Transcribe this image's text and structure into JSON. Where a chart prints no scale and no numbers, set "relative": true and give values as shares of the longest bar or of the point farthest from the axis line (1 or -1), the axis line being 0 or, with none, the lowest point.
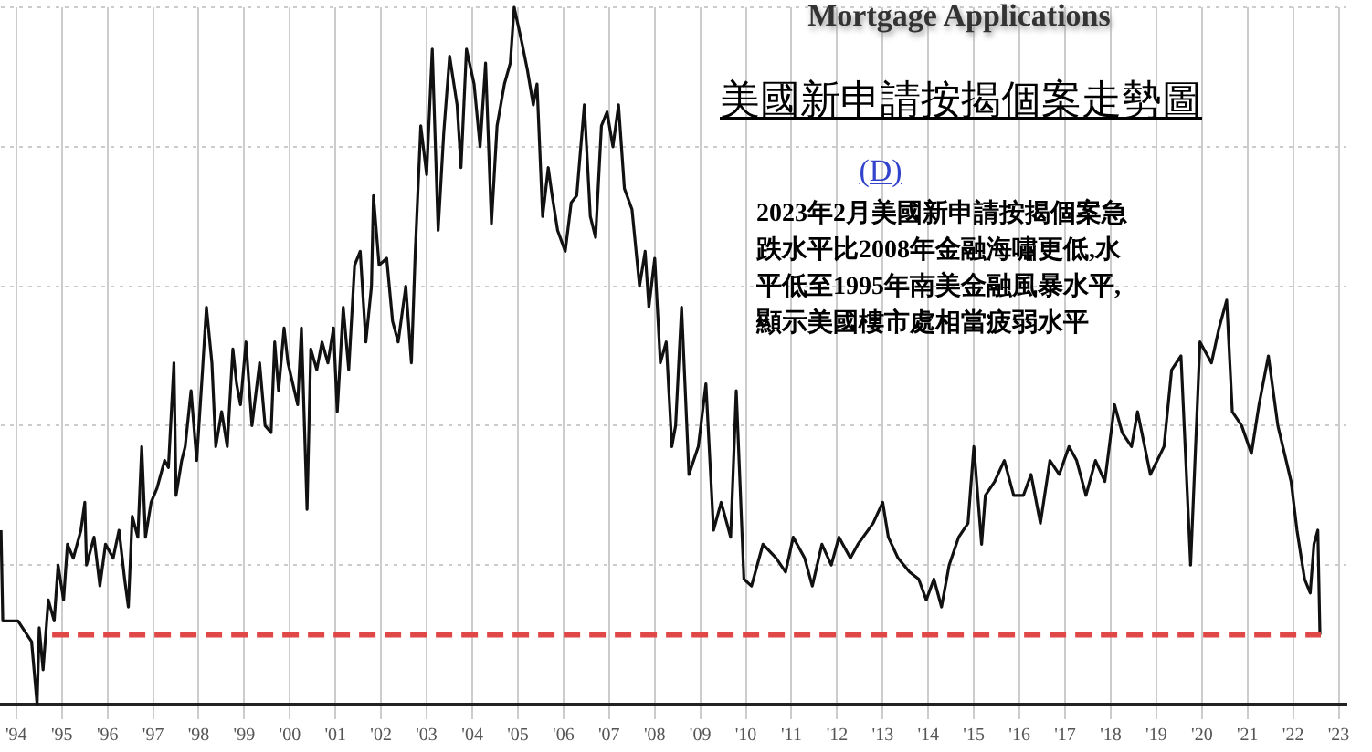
{
  "chart_data": {
    "type": "line",
    "title": "Mortgage Applications",
    "subtitle": "美國新申請按揭個案走勢圖",
    "annotations": [
      "(D)",
      "2023年2月美國新申請按揭個案急跌水平比2008年金融海嘯更低,水平低至1995年南美金融風暴水平,顯示美國樓市處相當疲弱水平"
    ],
    "relative": true,
    "legend": false,
    "grid": true,
    "marker": "none",
    "line_style": "solid",
    "xlim": [
      "1994-03-01",
      "2023-09-01"
    ],
    "xticks": [
      {
        "value": "1994-07-01",
        "label": "'94"
      },
      {
        "value": "1995-07-01",
        "label": "'95"
      },
      {
        "value": "1996-07-01",
        "label": "'96"
      },
      {
        "value": "1997-07-01",
        "label": "'97"
      },
      {
        "value": "1998-07-01",
        "label": "'98"
      },
      {
        "value": "1999-07-01",
        "label": "'99"
      },
      {
        "value": "2000-07-01",
        "label": "'00"
      },
      {
        "value": "2001-07-01",
        "label": "'01"
      },
      {
        "value": "2002-07-01",
        "label": "'02"
      },
      {
        "value": "2003-07-01",
        "label": "'03"
      },
      {
        "value": "2004-07-01",
        "label": "'04"
      },
      {
        "value": "2005-07-01",
        "label": "'05"
      },
      {
        "value": "2006-07-01",
        "label": "'06"
      },
      {
        "value": "2007-07-01",
        "label": "'07"
      },
      {
        "value": "2008-07-01",
        "label": "'08"
      },
      {
        "value": "2009-07-01",
        "label": "'09"
      },
      {
        "value": "2010-07-01",
        "label": "'10"
      },
      {
        "value": "2011-07-01",
        "label": "'11"
      },
      {
        "value": "2012-07-01",
        "label": "'12"
      },
      {
        "value": "2013-07-01",
        "label": "'13"
      },
      {
        "value": "2014-07-01",
        "label": "'14"
      },
      {
        "value": "2015-07-01",
        "label": "'15"
      },
      {
        "value": "2016-07-01",
        "label": "'16"
      },
      {
        "value": "2017-07-01",
        "label": "'17"
      },
      {
        "value": "2018-07-01",
        "label": "'18"
      },
      {
        "value": "2019-07-01",
        "label": "'19"
      },
      {
        "value": "2020-07-01",
        "label": "'20"
      },
      {
        "value": "2021-07-01",
        "label": "'21"
      },
      {
        "value": "2022-07-01",
        "label": "'22"
      },
      {
        "value": "2023-07-01",
        "label": "'23"
      }
    ],
    "ref_lines": [
      {
        "axis": "y",
        "value": 0.1,
        "color": "#e04848",
        "line_style": "dashed"
      }
    ],
    "series": [
      {
        "color": "#111111",
        "x": [
          "1994-03-01",
          "1994-03-15",
          "1994-07-15",
          "1994-11-01",
          "1994-12-15",
          "1995-01-01",
          "1995-02-01",
          "1995-03-15",
          "1995-05-01",
          "1995-06-01",
          "1995-07-15",
          "1995-08-15",
          "1995-10-01",
          "1995-12-01",
          "1996-01-01",
          "1996-01-15",
          "1996-03-15",
          "1996-05-01",
          "1996-06-15",
          "1996-08-15",
          "1996-10-01",
          "1996-11-15",
          "1996-12-15",
          "1997-01-15",
          "1997-03-01",
          "1997-04-01",
          "1997-05-01",
          "1997-06-15",
          "1997-08-01",
          "1997-10-01",
          "1997-11-01",
          "1997-12-15",
          "1998-01-01",
          "1998-02-15",
          "1998-03-15",
          "1998-05-01",
          "1998-06-15",
          "1998-08-01",
          "1998-09-01",
          "1998-10-15",
          "1998-11-15",
          "1999-01-01",
          "1999-02-15",
          "1999-04-01",
          "1999-05-01",
          "1999-06-01",
          "1999-07-15",
          "1999-09-01",
          "1999-11-01",
          "1999-12-15",
          "2000-02-01",
          "2000-03-01",
          "2000-04-01",
          "2000-05-15",
          "2000-06-15",
          "2000-09-01",
          "2000-10-01",
          "2000-11-15",
          "2000-12-15",
          "2001-02-01",
          "2001-03-15",
          "2001-05-01",
          "2001-06-15",
          "2001-07-15",
          "2001-09-01",
          "2001-10-15",
          "2001-12-01",
          "2002-01-15",
          "2002-03-01",
          "2002-04-15",
          "2002-05-01",
          "2002-06-15",
          "2002-08-15",
          "2002-10-01",
          "2002-11-15",
          "2003-01-15",
          "2003-03-01",
          "2003-04-01",
          "2003-05-15",
          "2003-07-01",
          "2003-08-15",
          "2003-10-01",
          "2003-11-15",
          "2004-01-01",
          "2004-03-01",
          "2004-04-01",
          "2004-05-15",
          "2004-07-15",
          "2004-09-01",
          "2004-10-15",
          "2004-12-01",
          "2005-01-15",
          "2005-03-15",
          "2005-05-01",
          "2005-06-01",
          "2005-08-01",
          "2005-09-15",
          "2005-11-01",
          "2005-12-01",
          "2006-01-15",
          "2006-03-01",
          "2006-04-01",
          "2006-05-15",
          "2006-07-15",
          "2006-09-01",
          "2006-10-15",
          "2006-12-15",
          "2007-02-01",
          "2007-03-15",
          "2007-05-01",
          "2007-06-15",
          "2007-08-01",
          "2007-09-15",
          "2007-11-01",
          "2008-01-01",
          "2008-03-01",
          "2008-04-15",
          "2008-05-15",
          "2008-07-01",
          "2008-08-15",
          "2008-10-01",
          "2008-11-15",
          "2008-12-15",
          "2009-02-01",
          "2009-04-01",
          "2009-06-15",
          "2009-08-15",
          "2009-10-15",
          "2009-12-15",
          "2010-03-01",
          "2010-04-15",
          "2010-06-15",
          "2010-08-15",
          "2010-11-15",
          "2011-03-01",
          "2011-05-15",
          "2011-07-15",
          "2011-10-15",
          "2011-12-15",
          "2012-03-01",
          "2012-05-15",
          "2012-07-15",
          "2012-10-15",
          "2012-12-15",
          "2013-04-15",
          "2013-07-01",
          "2013-08-15",
          "2013-11-01",
          "2014-02-01",
          "2014-04-15",
          "2014-06-15",
          "2014-08-15",
          "2014-10-15",
          "2014-12-15",
          "2015-03-01",
          "2015-05-15",
          "2015-07-01",
          "2015-09-01",
          "2015-10-01",
          "2015-12-15",
          "2016-03-01",
          "2016-05-15",
          "2016-08-01",
          "2016-10-01",
          "2016-12-15",
          "2017-03-01",
          "2017-05-15",
          "2017-08-01",
          "2017-10-01",
          "2017-12-15",
          "2018-03-01",
          "2018-05-15",
          "2018-08-01",
          "2018-10-01",
          "2018-12-15",
          "2019-02-01",
          "2019-05-15",
          "2019-09-01",
          "2019-11-01",
          "2020-01-15",
          "2020-04-01",
          "2020-06-15",
          "2020-09-15",
          "2020-11-15",
          "2021-01-15",
          "2021-03-01",
          "2021-05-15",
          "2021-08-01",
          "2021-10-01",
          "2021-12-15",
          "2022-03-01",
          "2022-06-15",
          "2022-08-01",
          "2022-10-01",
          "2022-11-15",
          "2022-12-15",
          "2023-01-15",
          "2023-02-01"
        ],
        "values": [
          0.25,
          0.12,
          0.12,
          0.09,
          0,
          0.11,
          0.05,
          0.15,
          0.12,
          0.2,
          0.15,
          0.23,
          0.21,
          0.25,
          0.29,
          0.2,
          0.24,
          0.17,
          0.23,
          0.21,
          0.25,
          0.18,
          0.14,
          0.27,
          0.24,
          0.37,
          0.24,
          0.29,
          0.31,
          0.35,
          0.34,
          0.49,
          0.3,
          0.35,
          0.37,
          0.45,
          0.35,
          0.48,
          0.57,
          0.49,
          0.37,
          0.42,
          0.37,
          0.51,
          0.46,
          0.43,
          0.52,
          0.4,
          0.49,
          0.4,
          0.39,
          0.52,
          0.45,
          0.54,
          0.49,
          0.43,
          0.54,
          0.28,
          0.51,
          0.48,
          0.52,
          0.49,
          0.54,
          0.42,
          0.57,
          0.48,
          0.63,
          0.65,
          0.52,
          0.6,
          0.73,
          0.63,
          0.64,
          0.55,
          0.52,
          0.6,
          0.49,
          0.65,
          0.83,
          0.76,
          0.94,
          0.68,
          0.82,
          0.93,
          0.86,
          0.77,
          0.94,
          0.89,
          0.8,
          0.92,
          0.69,
          0.83,
          0.89,
          0.92,
          1,
          0.95,
          0.91,
          0.86,
          0.89,
          0.7,
          0.77,
          0.73,
          0.68,
          0.65,
          0.72,
          0.73,
          0.86,
          0.7,
          0.67,
          0.83,
          0.85,
          0.8,
          0.86,
          0.74,
          0.71,
          0.6,
          0.65,
          0.57,
          0.64,
          0.49,
          0.52,
          0.37,
          0.4,
          0.57,
          0.33,
          0.37,
          0.46,
          0.25,
          0.29,
          0.24,
          0.45,
          0.18,
          0.17,
          0.23,
          0.21,
          0.19,
          0.24,
          0.21,
          0.17,
          0.23,
          0.2,
          0.24,
          0.21,
          0.23,
          0.26,
          0.29,
          0.24,
          0.21,
          0.19,
          0.18,
          0.15,
          0.18,
          0.14,
          0.2,
          0.24,
          0.26,
          0.37,
          0.23,
          0.3,
          0.32,
          0.35,
          0.3,
          0.3,
          0.33,
          0.26,
          0.35,
          0.33,
          0.37,
          0.35,
          0.3,
          0.35,
          0.32,
          0.43,
          0.39,
          0.37,
          0.42,
          0.33,
          0.37,
          0.48,
          0.5,
          0.2,
          0.52,
          0.49,
          0.54,
          0.58,
          0.42,
          0.4,
          0.36,
          0.43,
          0.5,
          0.4,
          0.32,
          0.25,
          0.18,
          0.16,
          0.23,
          0.25,
          0.1
        ]
      }
    ]
  }
}
